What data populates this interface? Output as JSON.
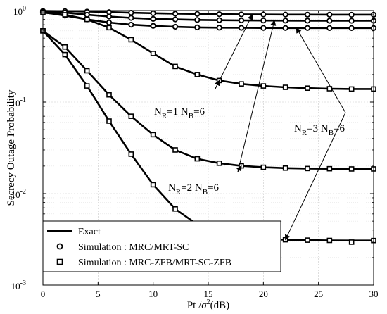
{
  "chart_data": {
    "type": "line",
    "title": "",
    "xlabel_base": "Pt /",
    "xlabel_sigma": "σ",
    "xlabel_sup": "2",
    "xlabel_unit": "(dB)",
    "ylabel": "Secrecy Outage Probability",
    "xlim": [
      0,
      30
    ],
    "ylim": [
      0.001,
      1
    ],
    "yscale": "log",
    "grid": true,
    "x_ticks": [
      "0",
      "5",
      "10",
      "15",
      "20",
      "25",
      "30"
    ],
    "y_ticks": [
      {
        "value": 1,
        "base": "10",
        "exp": "0"
      },
      {
        "value": 0.1,
        "base": "10",
        "exp": "-1"
      },
      {
        "value": 0.01,
        "base": "10",
        "exp": "-2"
      },
      {
        "value": 0.001,
        "base": "10",
        "exp": "-3"
      }
    ],
    "series": [
      {
        "name": "Exact",
        "style": "exact-line",
        "group": "top",
        "x": [
          0,
          2,
          4,
          6,
          8,
          10,
          12,
          14,
          16,
          18,
          20,
          22,
          24,
          26,
          28,
          30
        ],
        "y": [
          0.99,
          0.985,
          0.975,
          0.962,
          0.947,
          0.935,
          0.925,
          0.918,
          0.912,
          0.908,
          0.905,
          0.903,
          0.902,
          0.901,
          0.9,
          0.9
        ]
      },
      {
        "name": "Exact",
        "style": "exact-line",
        "group": "top",
        "x": [
          0,
          2,
          4,
          6,
          8,
          10,
          12,
          14,
          16,
          18,
          20,
          22,
          24,
          26,
          28,
          30
        ],
        "y": [
          0.98,
          0.95,
          0.9,
          0.86,
          0.83,
          0.81,
          0.8,
          0.79,
          0.785,
          0.78,
          0.778,
          0.776,
          0.775,
          0.774,
          0.773,
          0.773
        ]
      },
      {
        "name": "Exact",
        "style": "exact-line",
        "group": "top",
        "x": [
          0,
          2,
          4,
          6,
          8,
          10,
          12,
          14,
          16,
          18,
          20,
          22,
          24,
          26,
          28,
          30
        ],
        "y": [
          0.96,
          0.88,
          0.8,
          0.74,
          0.7,
          0.68,
          0.665,
          0.655,
          0.65,
          0.648,
          0.646,
          0.645,
          0.645,
          0.644,
          0.644,
          0.644
        ]
      },
      {
        "name": "Exact",
        "style": "exact-line",
        "group": "zfb",
        "x": [
          0,
          2,
          4,
          6,
          8,
          10,
          12,
          14,
          16,
          18,
          20,
          22,
          24,
          26,
          28,
          30
        ],
        "y": [
          0.95,
          0.9,
          0.8,
          0.65,
          0.48,
          0.34,
          0.245,
          0.2,
          0.172,
          0.158,
          0.15,
          0.145,
          0.142,
          0.14,
          0.139,
          0.139
        ]
      },
      {
        "name": "Exact",
        "style": "exact-line",
        "group": "zfb",
        "x": [
          0,
          2,
          4,
          6,
          8,
          10,
          12,
          14,
          16,
          18,
          20,
          22,
          24,
          26,
          28,
          30
        ],
        "y": [
          0.6,
          0.4,
          0.22,
          0.12,
          0.07,
          0.044,
          0.03,
          0.024,
          0.0215,
          0.0201,
          0.0194,
          0.019,
          0.0188,
          0.0187,
          0.0186,
          0.0186
        ]
      },
      {
        "name": "Exact",
        "style": "exact-line",
        "group": "zfb",
        "x": [
          0,
          2,
          4,
          6,
          8,
          10,
          12,
          14,
          16,
          18,
          20,
          22,
          24,
          26,
          28,
          30
        ],
        "y": [
          0.6,
          0.33,
          0.15,
          0.062,
          0.027,
          0.0125,
          0.0068,
          0.0046,
          0.0038,
          0.0034,
          0.0032,
          0.00313,
          0.0031,
          0.00308,
          0.00307,
          0.00307
        ]
      },
      {
        "name": "Simulation : MRC/MRT-SC",
        "style": "circle",
        "group": "top",
        "x": [
          0,
          2,
          4,
          6,
          8,
          10,
          12,
          14,
          16,
          18,
          20,
          22,
          24,
          26,
          28,
          30
        ],
        "y": [
          0.99,
          0.985,
          0.974,
          0.961,
          0.946,
          0.934,
          0.924,
          0.918,
          0.912,
          0.908,
          0.905,
          0.903,
          0.902,
          0.901,
          0.9,
          0.9
        ]
      },
      {
        "name": "Simulation : MRC/MRT-SC",
        "style": "circle",
        "group": "top",
        "x": [
          0,
          2,
          4,
          6,
          8,
          10,
          12,
          14,
          16,
          18,
          20,
          22,
          24,
          26,
          28,
          30
        ],
        "y": [
          0.98,
          0.95,
          0.9,
          0.86,
          0.83,
          0.81,
          0.8,
          0.79,
          0.785,
          0.78,
          0.778,
          0.776,
          0.775,
          0.774,
          0.773,
          0.773
        ]
      },
      {
        "name": "Simulation : MRC/MRT-SC",
        "style": "circle",
        "group": "top",
        "x": [
          0,
          2,
          4,
          6,
          8,
          10,
          12,
          14,
          16,
          18,
          20,
          22,
          24,
          26,
          28,
          30
        ],
        "y": [
          0.96,
          0.88,
          0.8,
          0.74,
          0.7,
          0.68,
          0.665,
          0.655,
          0.65,
          0.648,
          0.646,
          0.645,
          0.645,
          0.644,
          0.644,
          0.644
        ]
      },
      {
        "name": "Simulation : MRC-ZFB/MRT-SC-ZFB",
        "style": "square",
        "group": "zfb",
        "x": [
          0,
          2,
          4,
          6,
          8,
          10,
          12,
          14,
          16,
          18,
          20,
          22,
          24,
          26,
          28,
          30
        ],
        "y": [
          0.95,
          0.9,
          0.8,
          0.65,
          0.48,
          0.34,
          0.245,
          0.2,
          0.172,
          0.158,
          0.15,
          0.145,
          0.142,
          0.14,
          0.139,
          0.139
        ]
      },
      {
        "name": "Simulation : MRC-ZFB/MRT-SC-ZFB",
        "style": "square",
        "group": "zfb",
        "x": [
          0,
          2,
          4,
          6,
          8,
          10,
          12,
          14,
          16,
          18,
          20,
          22,
          24,
          26,
          28,
          30
        ],
        "y": [
          0.6,
          0.4,
          0.22,
          0.12,
          0.07,
          0.044,
          0.03,
          0.024,
          0.0215,
          0.0201,
          0.0194,
          0.019,
          0.0188,
          0.0187,
          0.0186,
          0.0186
        ]
      },
      {
        "name": "Simulation : MRC-ZFB/MRT-SC-ZFB",
        "style": "square",
        "group": "zfb",
        "x": [
          0,
          2,
          4,
          6,
          8,
          10,
          12,
          14,
          16,
          18,
          20,
          22,
          24,
          26,
          28,
          30
        ],
        "y": [
          0.6,
          0.33,
          0.15,
          0.062,
          0.027,
          0.0125,
          0.0068,
          0.0046,
          0.0038,
          0.0034,
          0.0032,
          0.00313,
          0.0031,
          0.00308,
          0.00295,
          0.00307
        ]
      }
    ],
    "annotations": [
      {
        "id": "n1",
        "prefix": "N",
        "sub1": "R",
        "mid": "=1  N",
        "sub2": "B",
        "suffix": "=6"
      },
      {
        "id": "n2",
        "prefix": "N",
        "sub1": "R",
        "mid": "=2  N",
        "sub2": "B",
        "suffix": "=6"
      },
      {
        "id": "n3",
        "prefix": "N",
        "sub1": "R",
        "mid": "=3  N",
        "sub2": "B",
        "suffix": "=6"
      }
    ],
    "arrows": [
      {
        "label": "n1",
        "target": [
          19,
          0.9
        ]
      },
      {
        "label": "n1",
        "target": [
          16,
          0.172
        ]
      },
      {
        "label": "n2",
        "target": [
          21,
          0.778
        ]
      },
      {
        "label": "n2",
        "target": [
          18,
          0.0201
        ]
      },
      {
        "label": "n3",
        "target": [
          23,
          0.645
        ]
      },
      {
        "label": "n3",
        "target": [
          22,
          0.00313
        ]
      }
    ],
    "legend": {
      "placement": "bottom-left",
      "items": [
        {
          "label": "Exact",
          "marker": "line"
        },
        {
          "label": "Simulation   : MRC/MRT-SC",
          "marker": "circle"
        },
        {
          "label": "Simulation   : MRC-ZFB/MRT-SC-ZFB",
          "marker": "square"
        }
      ]
    }
  }
}
